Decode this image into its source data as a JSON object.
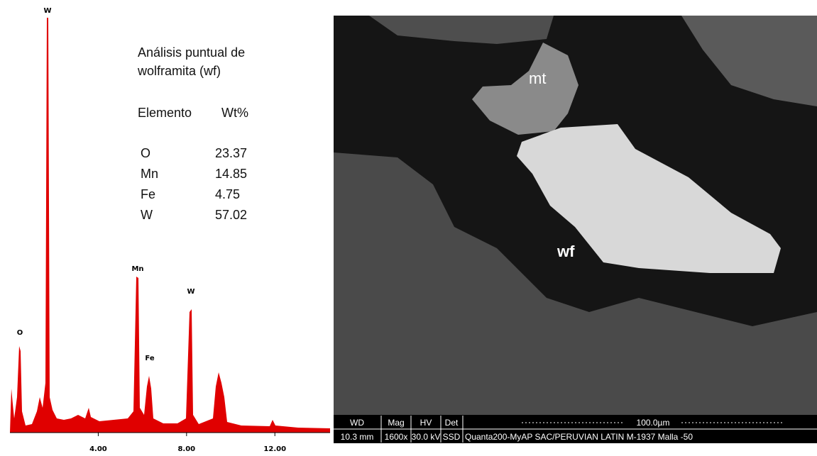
{
  "spectrum": {
    "xlim": [
      0,
      14.5
    ],
    "xticks": [
      {
        "value": 4,
        "label": "4.00"
      },
      {
        "value": 8,
        "label": "8.00"
      },
      {
        "value": 12,
        "label": "12.00"
      }
    ],
    "peak_labels": [
      "W",
      "O",
      "Mn",
      "Fe",
      "W"
    ],
    "color": "#e00000"
  },
  "analysis": {
    "title": [
      "Análisis puntual de",
      "wolframita (wf)"
    ],
    "header": [
      "Elemento",
      "Wt%"
    ],
    "rows": [
      [
        "O",
        "23.37"
      ],
      [
        "Mn",
        "14.85"
      ],
      [
        "Fe",
        "4.75"
      ],
      [
        "W",
        "57.02"
      ]
    ]
  },
  "micrograph": {
    "labels": [
      "mt",
      "wf"
    ],
    "info_header": [
      "WD",
      "Mag",
      "HV",
      "Det"
    ],
    "scale": "100.0µm",
    "info_values": [
      "10.3 mm",
      "1600x",
      "30.0 kV",
      "SSD",
      "Quanta200-MyAP SAC/PERUVIAN LATIN M-1937 Malla -50"
    ]
  }
}
